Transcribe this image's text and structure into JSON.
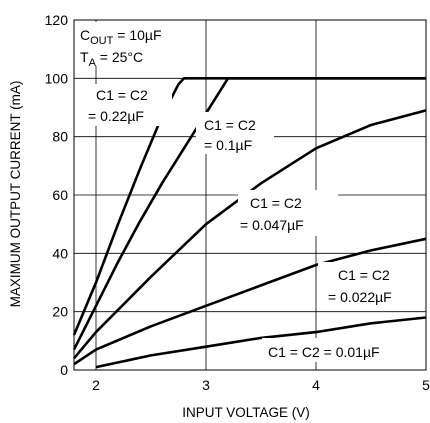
{
  "chart_data": {
    "type": "line",
    "xlabel": "INPUT VOLTAGE (V)",
    "ylabel": "MAXIMUM OUTPUT CURRENT (mA)",
    "xlim": [
      1.8,
      5
    ],
    "ylim": [
      0,
      120
    ],
    "x_ticks": [
      2,
      3,
      4,
      5
    ],
    "y_ticks": [
      0,
      20,
      40,
      60,
      80,
      100,
      120
    ],
    "grid": true,
    "conditions": {
      "cout": {
        "main": "C",
        "sub": "OUT",
        "rest": " = 10µF"
      },
      "ta": {
        "main": "T",
        "sub": "A",
        "rest": " = 25°C"
      }
    },
    "series": [
      {
        "name": "C1 = C2 = 0.22µF",
        "x": [
          1.8,
          2.0,
          2.2,
          2.4,
          2.6,
          2.75,
          2.8,
          5.0
        ],
        "y": [
          12,
          30,
          50,
          69,
          87,
          98,
          100,
          100
        ]
      },
      {
        "name": "C1 = C2 = 0.1µF",
        "x": [
          1.8,
          2.0,
          2.2,
          2.4,
          2.6,
          2.8,
          3.0,
          3.15,
          3.2,
          5.0
        ],
        "y": [
          7,
          22,
          37,
          51,
          64,
          76,
          88,
          97,
          100,
          100
        ]
      },
      {
        "name": "C1 = C2 = 0.047µF",
        "x": [
          1.8,
          2.0,
          2.5,
          3.0,
          3.5,
          4.0,
          4.5,
          5.0
        ],
        "y": [
          4,
          13,
          32,
          50,
          64,
          76,
          84,
          89
        ]
      },
      {
        "name": "C1 = C2 = 0.022µF",
        "x": [
          1.8,
          2.0,
          2.5,
          3.0,
          3.5,
          4.0,
          4.5,
          5.0
        ],
        "y": [
          2,
          7,
          15,
          22,
          29,
          36,
          41,
          45
        ]
      },
      {
        "name": "C1 = C2 = 0.01µF",
        "x": [
          2.0,
          2.5,
          3.0,
          3.5,
          4.0,
          4.5,
          5.0
        ],
        "y": [
          1,
          5,
          8,
          11,
          13,
          16,
          18
        ]
      }
    ],
    "annotations": [
      {
        "lines": [
          "C1 = C2",
          "= 0.22µF"
        ]
      },
      {
        "lines": [
          "C1 = C2",
          "= 0.1µF"
        ]
      },
      {
        "lines": [
          "C1 = C2",
          "= 0.047µF"
        ]
      },
      {
        "lines": [
          "C1 = C2",
          "= 0.022µF"
        ]
      },
      {
        "lines": [
          "C1 = C2 = 0.01µF"
        ]
      }
    ]
  }
}
